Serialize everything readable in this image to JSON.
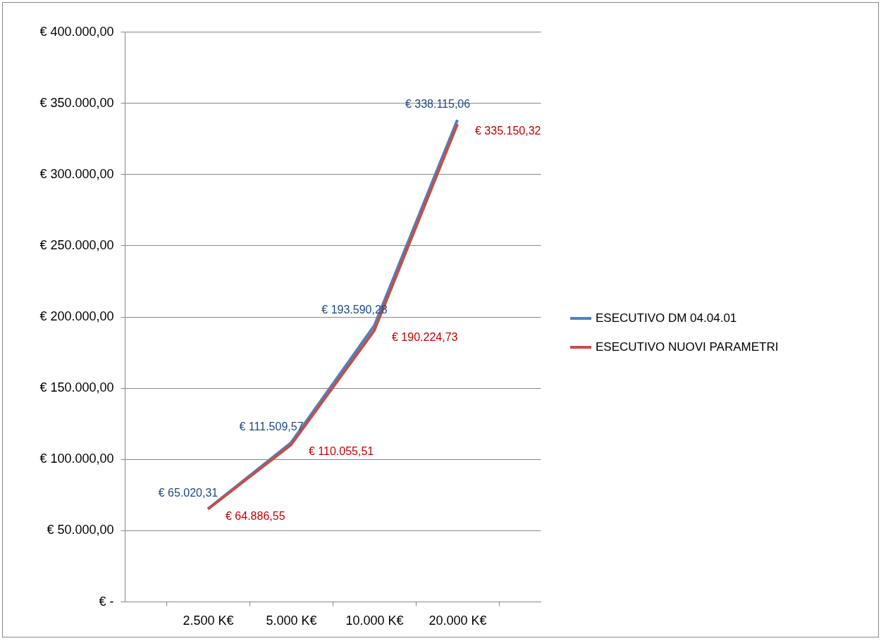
{
  "chart_data": {
    "type": "line",
    "categories": [
      "2.500 K€",
      "5.000 K€",
      "10.000 K€",
      "20.000 K€"
    ],
    "series": [
      {
        "name": "ESECUTIVO DM 04.04.01",
        "color": "#4f81bd",
        "values": [
          65020.31,
          111509.57,
          193590.28,
          338115.06
        ],
        "value_labels": [
          "€ 65.020,31",
          "€ 111.509,57",
          "€ 193.590,28",
          "€ 338.115,06"
        ]
      },
      {
        "name": "ESECUTIVO NUOVI PARAMETRI",
        "color": "#c0504d",
        "values": [
          64886.55,
          110055.51,
          190224.73,
          335150.32
        ],
        "value_labels": [
          "€ 64.886,55",
          "€ 110.055,51",
          "€ 190.224,73",
          "€ 335.150,32"
        ]
      }
    ],
    "ylim": [
      0,
      400000
    ],
    "yticks": [
      {
        "value": 0,
        "label": "€ -"
      },
      {
        "value": 50000,
        "label": "€ 50.000,00"
      },
      {
        "value": 100000,
        "label": "€ 100.000,00"
      },
      {
        "value": 150000,
        "label": "€ 150.000,00"
      },
      {
        "value": 200000,
        "label": "€ 200.000,00"
      },
      {
        "value": 250000,
        "label": "€ 250.000,00"
      },
      {
        "value": 300000,
        "label": "€ 300.000,00"
      },
      {
        "value": 350000,
        "label": "€ 350.000,00"
      },
      {
        "value": 400000,
        "label": "€ 400.000,00"
      }
    ],
    "grid": "y",
    "legend": "right"
  }
}
